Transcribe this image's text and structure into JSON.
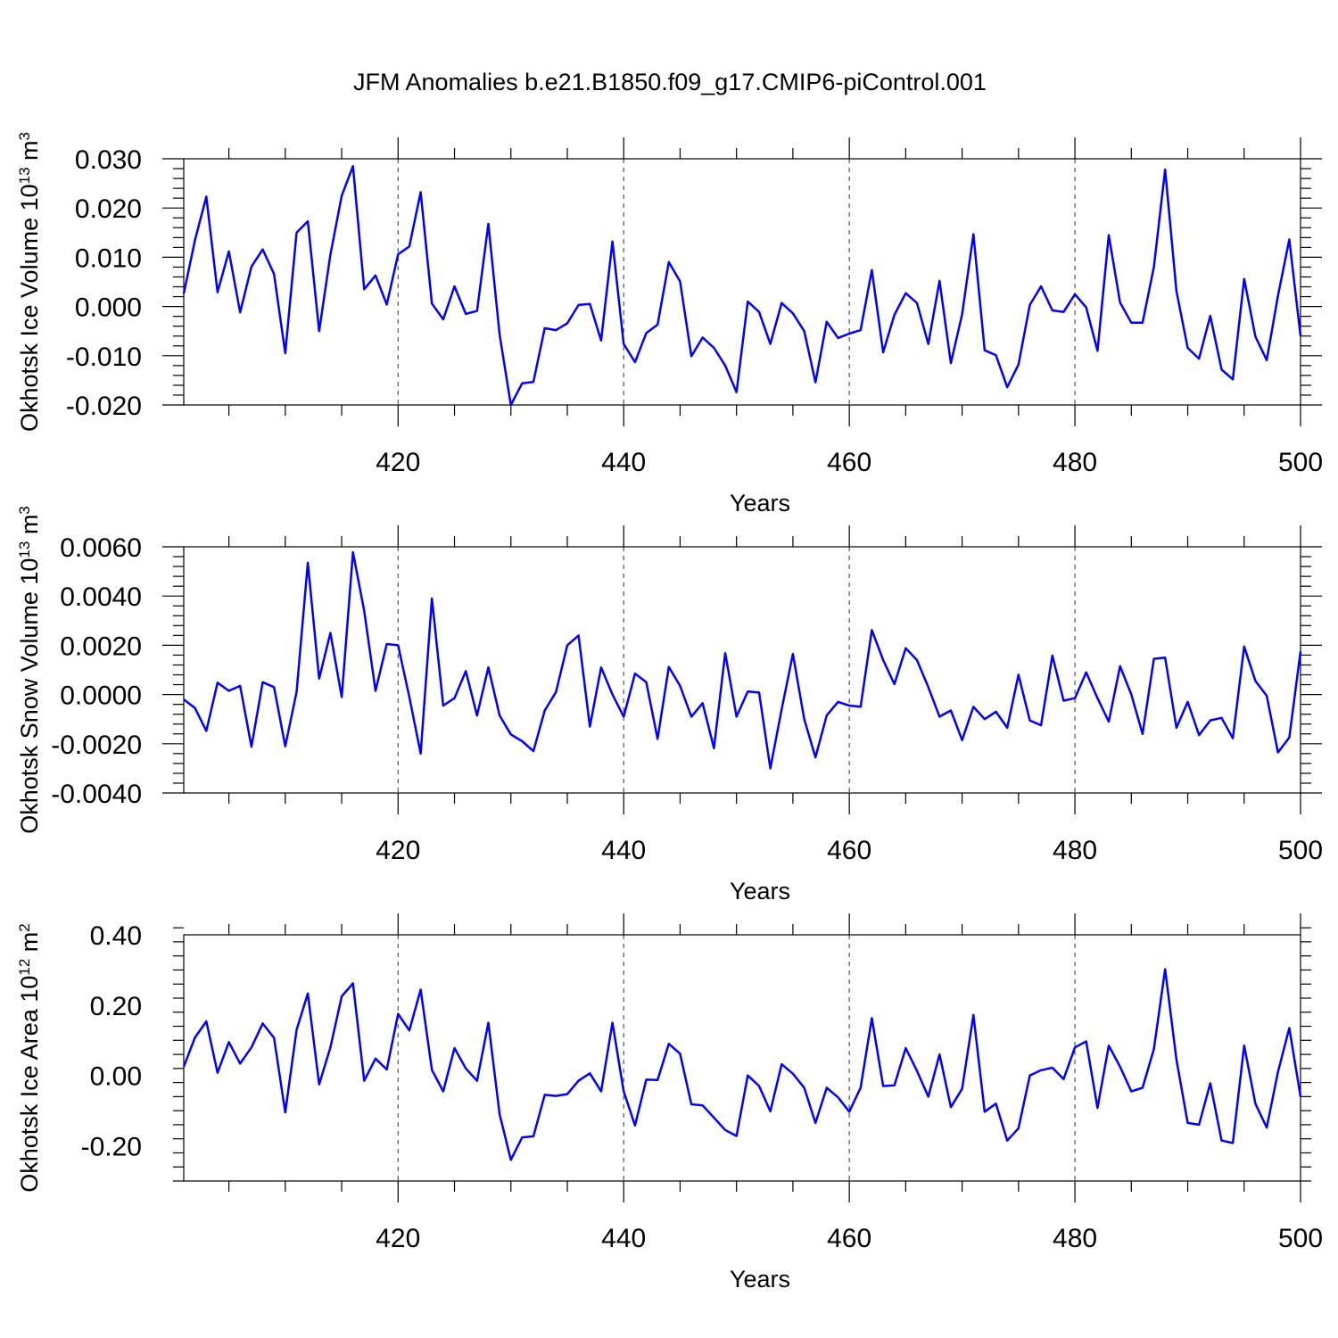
{
  "title": "JFM Anomalies b.e21.B1850.f09_g17.CMIP6-piControl.001",
  "colors": {
    "series": "#0000ff",
    "axis": "#000000",
    "grid": "#555555"
  },
  "chart_data": [
    {
      "type": "line",
      "name": "ice-volume",
      "ylabel_main": "Okhotsk Ice Volume 10",
      "ylabel_exp": "13",
      "ylabel_unit": " m",
      "ylabel_unit_exp": "3",
      "xlabel": "Years",
      "xlim": [
        401,
        500
      ],
      "ylim": [
        -0.02,
        0.03
      ],
      "xticks": [
        420,
        440,
        460,
        480,
        500
      ],
      "xtick_labels": [
        "420",
        "440",
        "460",
        "480",
        "500"
      ],
      "yticks": [
        -0.02,
        -0.01,
        0.0,
        0.01,
        0.02,
        0.03
      ],
      "ytick_labels": [
        "-0.020",
        "-0.010",
        "0.000",
        "0.010",
        "0.020",
        "0.030"
      ],
      "grid_x": [
        420,
        440,
        460,
        480
      ],
      "x_start": 401,
      "values": [
        0.0026,
        0.0135,
        0.0223,
        0.0029,
        0.0112,
        -0.0012,
        0.0081,
        0.0116,
        0.0066,
        -0.0095,
        0.015,
        0.0173,
        -0.005,
        0.0105,
        0.0225,
        0.0285,
        0.0035,
        0.0063,
        0.0004,
        0.0106,
        0.0122,
        0.0232,
        0.0006,
        -0.0026,
        0.0041,
        -0.0015,
        -0.0009,
        0.0168,
        -0.0057,
        -0.02,
        -0.0156,
        -0.0153,
        -0.0044,
        -0.0048,
        -0.0034,
        0.0003,
        0.0005,
        -0.0069,
        0.0132,
        -0.0076,
        -0.0113,
        -0.0054,
        -0.0037,
        0.009,
        0.0051,
        -0.0101,
        -0.0063,
        -0.0084,
        -0.012,
        -0.0174,
        0.001,
        -0.0011,
        -0.0076,
        0.0007,
        -0.0014,
        -0.005,
        -0.0154,
        -0.0031,
        -0.0064,
        -0.0055,
        -0.0048,
        0.0074,
        -0.0093,
        -0.0017,
        0.0027,
        0.0007,
        -0.0076,
        0.0052,
        -0.0115,
        -0.0016,
        0.0147,
        -0.0089,
        -0.0099,
        -0.0164,
        -0.0118,
        0.0003,
        0.0041,
        -0.0008,
        -0.0011,
        0.0025,
        -0.0002,
        -0.009,
        0.0145,
        0.0008,
        -0.0033,
        -0.0033,
        0.008,
        0.0278,
        0.0031,
        -0.0084,
        -0.0106,
        -0.0019,
        -0.0128,
        -0.0148,
        0.0056,
        -0.0061,
        -0.0109,
        0.0022,
        0.0136,
        -0.006
      ]
    },
    {
      "type": "line",
      "name": "snow-volume",
      "ylabel_main": "Okhotsk Snow Volume 10",
      "ylabel_exp": "13",
      "ylabel_unit": " m",
      "ylabel_unit_exp": "3",
      "xlabel": "Years",
      "xlim": [
        401,
        500
      ],
      "ylim": [
        -0.004,
        0.006
      ],
      "xticks": [
        420,
        440,
        460,
        480,
        500
      ],
      "xtick_labels": [
        "420",
        "440",
        "460",
        "480",
        "500"
      ],
      "yticks": [
        -0.004,
        -0.002,
        0.0,
        0.002,
        0.004,
        0.006
      ],
      "ytick_labels": [
        "-0.0040",
        "-0.0020",
        "0.0000",
        "0.0020",
        "0.0040",
        "0.0060"
      ],
      "grid_x": [
        420,
        440,
        460,
        480
      ],
      "x_start": 401,
      "values": [
        -0.0002,
        -0.00055,
        -0.00148,
        0.00048,
        0.00015,
        0.00035,
        -0.00212,
        0.0005,
        0.0003,
        -0.0021,
        0.0001,
        0.00535,
        0.00065,
        0.0025,
        -0.0001,
        0.00578,
        0.0034,
        0.00015,
        0.00205,
        0.002,
        -0.0001,
        -0.0024,
        0.0039,
        -0.00045,
        -0.00015,
        0.00095,
        -0.00085,
        0.0011,
        -0.00085,
        -0.00162,
        -0.0019,
        -0.0023,
        -0.00065,
        0.0001,
        0.002,
        0.0024,
        -0.0013,
        0.0011,
        0.0,
        -0.0009,
        0.00085,
        0.0005,
        -0.0018,
        0.00112,
        0.00035,
        -0.0009,
        -0.00035,
        -0.00218,
        0.00168,
        -0.0009,
        0.00012,
        8e-05,
        -0.003,
        -0.0006,
        0.00165,
        -0.001,
        -0.00255,
        -0.00085,
        -0.0003,
        -0.00045,
        -0.0005,
        0.00262,
        0.0014,
        0.00042,
        0.00188,
        0.0014,
        0.0003,
        -0.0009,
        -0.00065,
        -0.00185,
        -0.0005,
        -0.001,
        -0.0007,
        -0.00135,
        0.0008,
        -0.00105,
        -0.00125,
        0.00158,
        -0.00025,
        -0.00015,
        0.0009,
        -0.00015,
        -0.0011,
        0.00115,
        0.0,
        -0.0016,
        0.00145,
        0.0015,
        -0.00135,
        -0.0003,
        -0.00165,
        -0.00105,
        -0.00095,
        -0.00178,
        0.00195,
        0.00055,
        -5e-05,
        -0.00235,
        -0.00175,
        0.00175
      ]
    },
    {
      "type": "line",
      "name": "ice-area",
      "ylabel_main": "Okhotsk Ice Area 10",
      "ylabel_exp": "12",
      "ylabel_unit": " m",
      "ylabel_unit_exp": "2",
      "xlabel": "Years",
      "xlim": [
        401,
        500
      ],
      "ylim": [
        -0.3,
        0.4
      ],
      "xticks": [
        420,
        440,
        460,
        480,
        500
      ],
      "xtick_labels": [
        "420",
        "440",
        "460",
        "480",
        "500"
      ],
      "yticks": [
        -0.2,
        0.0,
        0.2,
        0.4
      ],
      "ytick_labels": [
        "-0.20",
        "0.00",
        "0.20",
        "0.40"
      ],
      "grid_x": [
        420,
        440,
        460,
        480
      ],
      "x_start": 401,
      "values": [
        0.025,
        0.108,
        0.154,
        0.008,
        0.095,
        0.034,
        0.08,
        0.148,
        0.107,
        -0.105,
        0.13,
        0.233,
        -0.025,
        0.08,
        0.225,
        0.262,
        -0.015,
        0.048,
        0.017,
        0.175,
        0.128,
        0.244,
        0.016,
        -0.045,
        0.078,
        0.02,
        -0.015,
        0.15,
        -0.11,
        -0.24,
        -0.176,
        -0.173,
        -0.055,
        -0.058,
        -0.053,
        -0.015,
        0.006,
        -0.045,
        0.15,
        -0.045,
        -0.142,
        -0.012,
        -0.013,
        0.09,
        0.062,
        -0.082,
        -0.085,
        -0.12,
        -0.155,
        -0.172,
        0.0,
        -0.03,
        -0.102,
        0.032,
        0.005,
        -0.035,
        -0.135,
        -0.035,
        -0.062,
        -0.103,
        -0.035,
        0.163,
        -0.03,
        -0.028,
        0.078,
        0.013,
        -0.06,
        0.06,
        -0.09,
        -0.038,
        0.172,
        -0.103,
        -0.08,
        -0.185,
        -0.15,
        0.0,
        0.015,
        0.022,
        -0.01,
        0.08,
        0.097,
        -0.092,
        0.085,
        0.025,
        -0.045,
        -0.035,
        0.075,
        0.302,
        0.045,
        -0.135,
        -0.14,
        -0.022,
        -0.185,
        -0.192,
        0.085,
        -0.08,
        -0.148,
        0.01,
        0.135,
        -0.06
      ]
    }
  ]
}
